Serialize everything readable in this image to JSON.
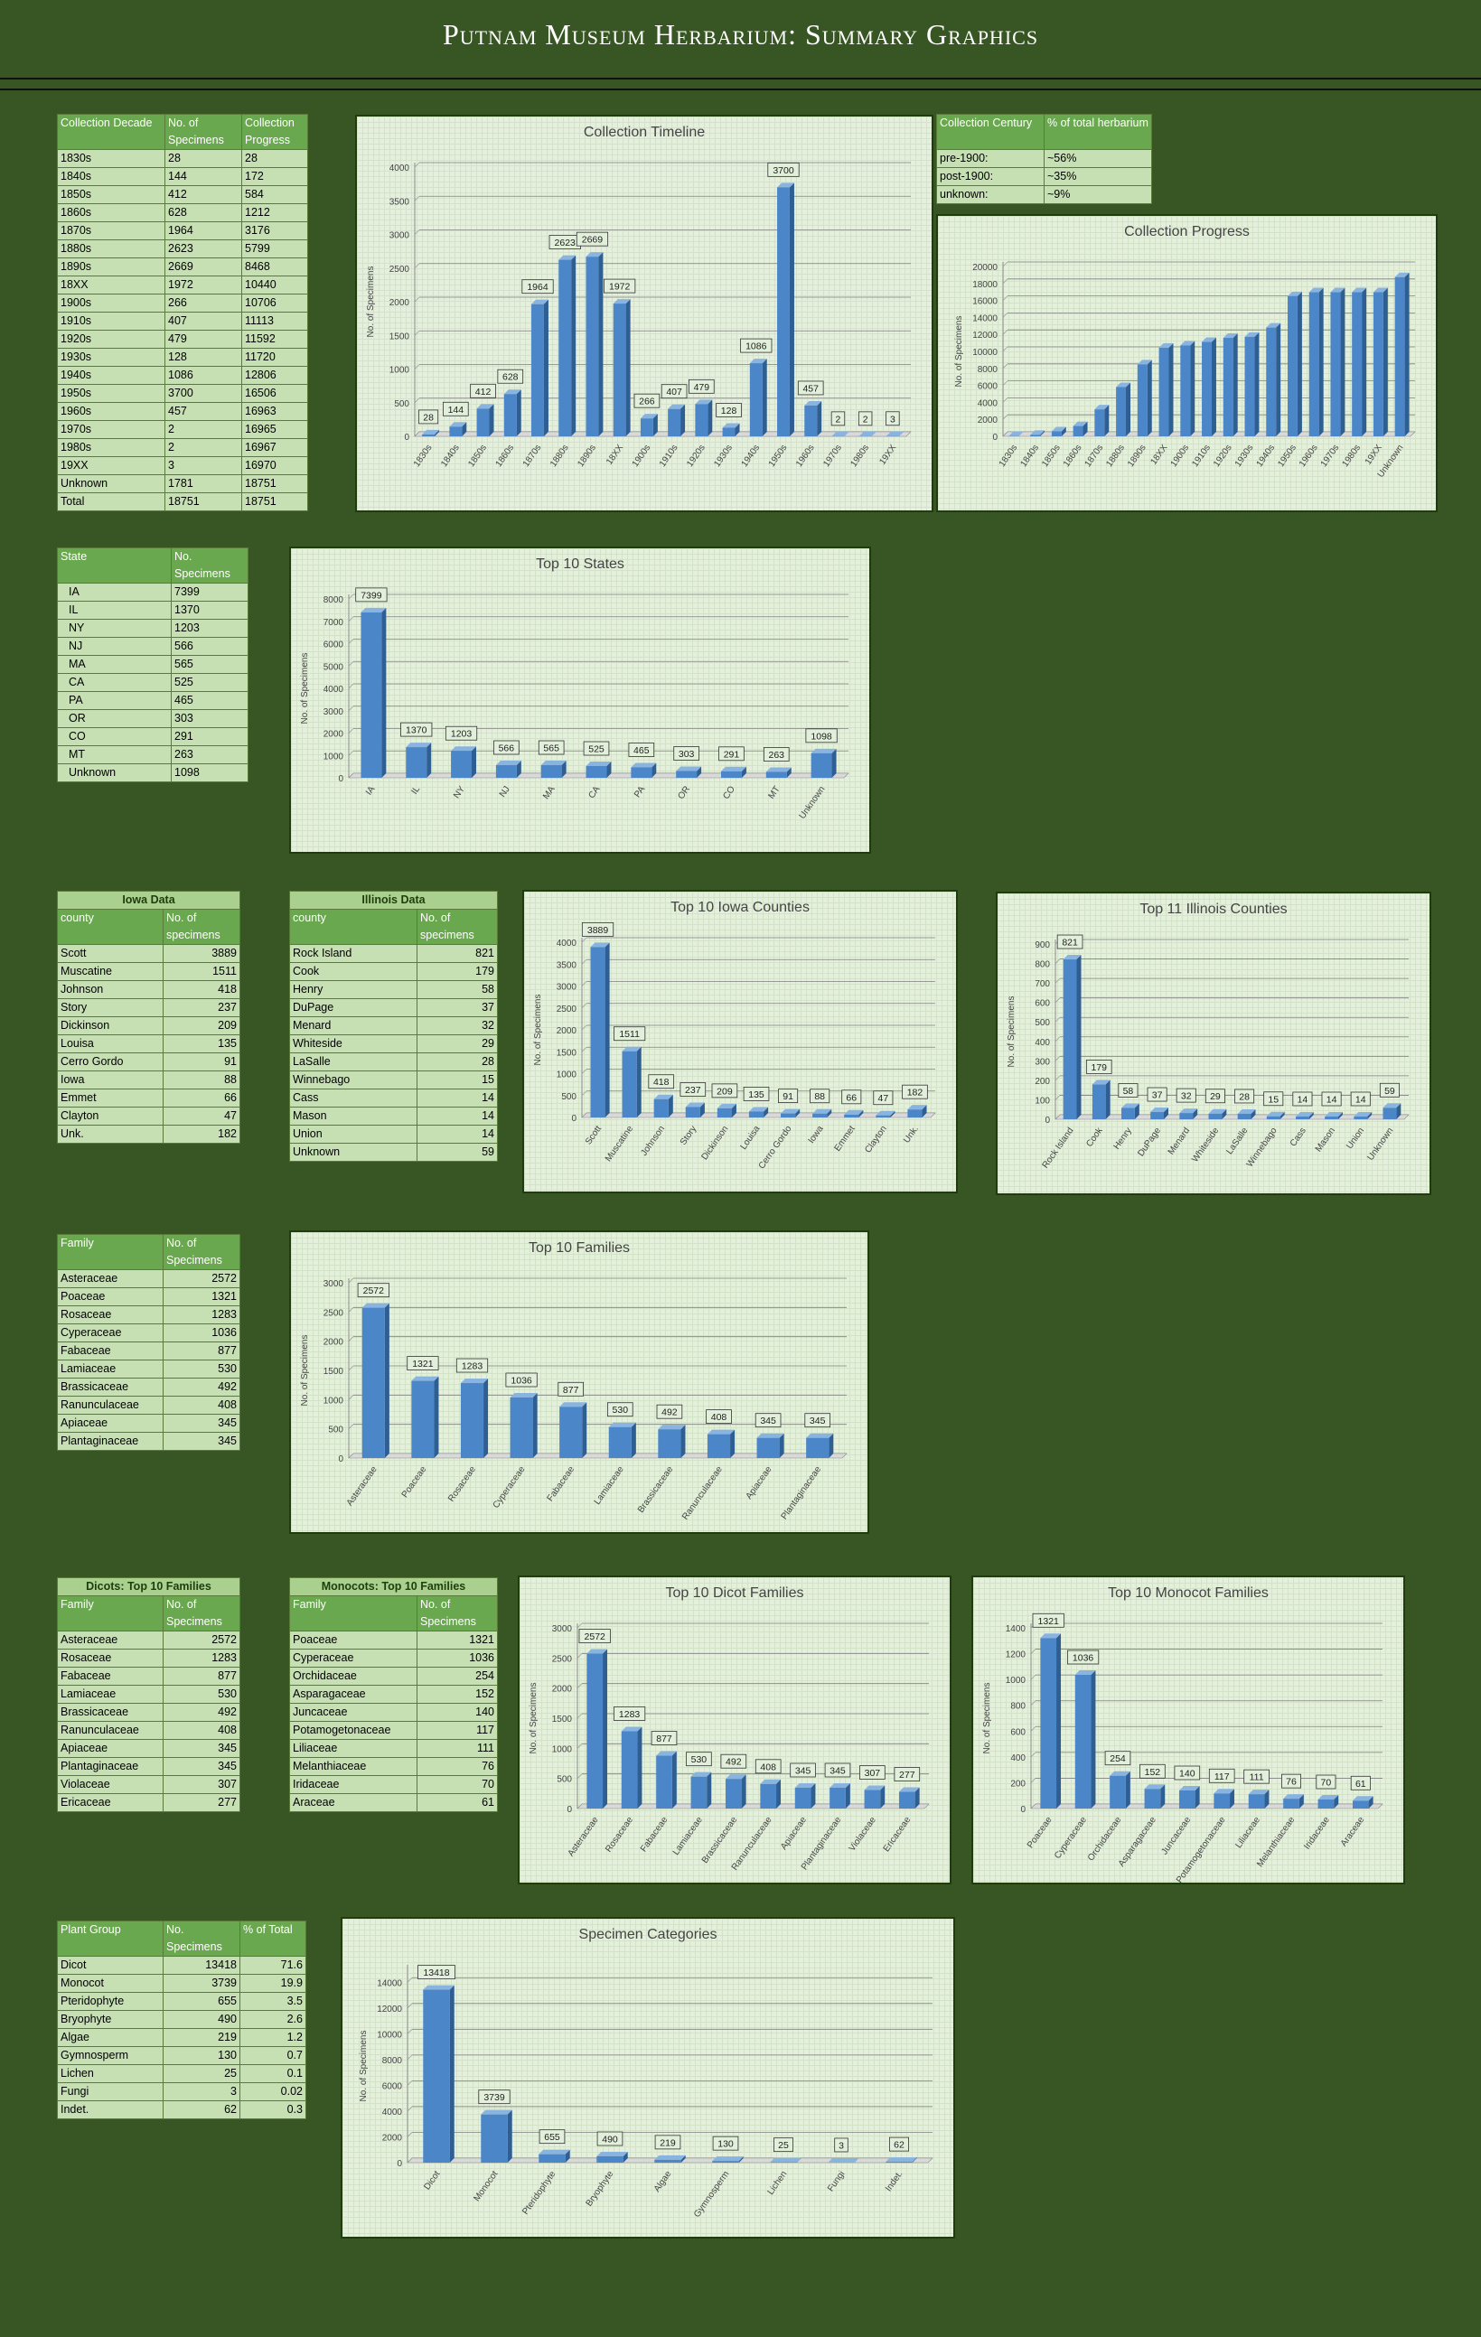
{
  "page_title": "Putnam Museum Herbarium:  Summary Graphics",
  "colors": {
    "background": "#375623",
    "header_cell": "#6aa84f",
    "cell": "#c6e0b4",
    "bar": "#4a86c8",
    "chart_bg": "#e4efdc"
  },
  "tables": {
    "decade": {
      "headers": [
        "Collection Decade",
        "No. of Specimens",
        "Collection Progress"
      ],
      "rows": [
        [
          "1830s",
          "28",
          "28"
        ],
        [
          "1840s",
          "144",
          "172"
        ],
        [
          "1850s",
          "412",
          "584"
        ],
        [
          "1860s",
          "628",
          "1212"
        ],
        [
          "1870s",
          "1964",
          "3176"
        ],
        [
          "1880s",
          "2623",
          "5799"
        ],
        [
          "1890s",
          "2669",
          "8468"
        ],
        [
          "18XX",
          "1972",
          "10440"
        ],
        [
          "1900s",
          "266",
          "10706"
        ],
        [
          "1910s",
          "407",
          "11113"
        ],
        [
          "1920s",
          "479",
          "11592"
        ],
        [
          "1930s",
          "128",
          "11720"
        ],
        [
          "1940s",
          "1086",
          "12806"
        ],
        [
          "1950s",
          "3700",
          "16506"
        ],
        [
          "1960s",
          "457",
          "16963"
        ],
        [
          "1970s",
          "2",
          "16965"
        ],
        [
          "1980s",
          "2",
          "16967"
        ],
        [
          "19XX",
          "3",
          "16970"
        ],
        [
          "Unknown",
          "1781",
          "18751"
        ],
        [
          "Total",
          "18751",
          "18751"
        ]
      ]
    },
    "century": {
      "headers": [
        "Collection Century",
        "% of total herbarium"
      ],
      "rows": [
        [
          "pre-1900:",
          "~56%"
        ],
        [
          "post-1900:",
          "~35%"
        ],
        [
          "unknown:",
          "~9%"
        ]
      ]
    },
    "state": {
      "headers": [
        "State",
        "No. Specimens"
      ],
      "rows": [
        [
          "IA",
          "7399"
        ],
        [
          "IL",
          "1370"
        ],
        [
          "NY",
          "1203"
        ],
        [
          "NJ",
          "566"
        ],
        [
          "MA",
          "565"
        ],
        [
          "CA",
          "525"
        ],
        [
          "PA",
          "465"
        ],
        [
          "OR",
          "303"
        ],
        [
          "CO",
          "291"
        ],
        [
          "MT",
          "263"
        ],
        [
          "Unknown",
          "1098"
        ]
      ]
    },
    "iowa": {
      "title": "Iowa Data",
      "headers": [
        "county",
        "No. of specimens"
      ],
      "rows": [
        [
          "Scott",
          "3889"
        ],
        [
          "Muscatine",
          "1511"
        ],
        [
          "Johnson",
          "418"
        ],
        [
          "Story",
          "237"
        ],
        [
          "Dickinson",
          "209"
        ],
        [
          "Louisa",
          "135"
        ],
        [
          "Cerro Gordo",
          "91"
        ],
        [
          "Iowa",
          "88"
        ],
        [
          "Emmet",
          "66"
        ],
        [
          "Clayton",
          "47"
        ],
        [
          "Unk.",
          "182"
        ]
      ]
    },
    "illinois": {
      "title": "Illinois Data",
      "headers": [
        "county",
        "No. of specimens"
      ],
      "rows": [
        [
          "Rock Island",
          "821"
        ],
        [
          "Cook",
          "179"
        ],
        [
          "Henry",
          "58"
        ],
        [
          "DuPage",
          "37"
        ],
        [
          "Menard",
          "32"
        ],
        [
          "Whiteside",
          "29"
        ],
        [
          "LaSalle",
          "28"
        ],
        [
          "Winnebago",
          "15"
        ],
        [
          "Cass",
          "14"
        ],
        [
          "Mason",
          "14"
        ],
        [
          "Union",
          "14"
        ],
        [
          "Unknown",
          "59"
        ]
      ]
    },
    "family": {
      "headers": [
        "Family",
        "No. of Specimens"
      ],
      "rows": [
        [
          "Asteraceae",
          "2572"
        ],
        [
          "Poaceae",
          "1321"
        ],
        [
          "Rosaceae",
          "1283"
        ],
        [
          "Cyperaceae",
          "1036"
        ],
        [
          "Fabaceae",
          "877"
        ],
        [
          "Lamiaceae",
          "530"
        ],
        [
          "Brassicaceae",
          "492"
        ],
        [
          "Ranunculaceae",
          "408"
        ],
        [
          "Apiaceae",
          "345"
        ],
        [
          "Plantaginaceae",
          "345"
        ]
      ]
    },
    "dicots": {
      "title": "Dicots:  Top 10 Families",
      "headers": [
        "Family",
        "No. of Specimens"
      ],
      "rows": [
        [
          "Asteraceae",
          "2572"
        ],
        [
          "Rosaceae",
          "1283"
        ],
        [
          "Fabaceae",
          "877"
        ],
        [
          "Lamiaceae",
          "530"
        ],
        [
          "Brassicaceae",
          "492"
        ],
        [
          "Ranunculaceae",
          "408"
        ],
        [
          "Apiaceae",
          "345"
        ],
        [
          "Plantaginaceae",
          "345"
        ],
        [
          "Violaceae",
          "307"
        ],
        [
          "Ericaceae",
          "277"
        ]
      ]
    },
    "monocots": {
      "title": "Monocots:  Top 10 Families",
      "headers": [
        "Family",
        "No. of Specimens"
      ],
      "rows": [
        [
          "Poaceae",
          "1321"
        ],
        [
          "Cyperaceae",
          "1036"
        ],
        [
          "Orchidaceae",
          "254"
        ],
        [
          "Asparagaceae",
          "152"
        ],
        [
          "Juncaceae",
          "140"
        ],
        [
          "Potamogetonaceae",
          "117"
        ],
        [
          "Liliaceae",
          "111"
        ],
        [
          "Melanthiaceae",
          "76"
        ],
        [
          "Iridaceae",
          "70"
        ],
        [
          "Araceae",
          "61"
        ]
      ]
    },
    "groups": {
      "headers": [
        "Plant Group",
        "No. Specimens",
        "% of Total"
      ],
      "rows": [
        [
          "Dicot",
          "13418",
          "71.6"
        ],
        [
          "Monocot",
          "3739",
          "19.9"
        ],
        [
          "Pteridophyte",
          "655",
          "3.5"
        ],
        [
          "Bryophyte",
          "490",
          "2.6"
        ],
        [
          "Algae",
          "219",
          "1.2"
        ],
        [
          "Gymnosperm",
          "130",
          "0.7"
        ],
        [
          "Lichen",
          "25",
          "0.1"
        ],
        [
          "Fungi",
          "3",
          "0.02"
        ],
        [
          "Indet.",
          "62",
          "0.3"
        ]
      ]
    }
  },
  "chart_data": [
    {
      "id": "timeline",
      "type": "bar",
      "title": "Collection Timeline",
      "xlabel": "",
      "ylabel": "No. of Specimens",
      "ylim": [
        0,
        4000
      ],
      "yticks": [
        0,
        500,
        1000,
        1500,
        2000,
        2500,
        3000,
        3500,
        4000
      ],
      "data_labels": true,
      "grid": true,
      "categories": [
        "1830s",
        "1840s",
        "1850s",
        "1860s",
        "1870s",
        "1880s",
        "1890s",
        "18XX",
        "1900s",
        "1910s",
        "1920s",
        "1930s",
        "1940s",
        "1950s",
        "1960s",
        "1970s",
        "1980s",
        "19XX"
      ],
      "values": [
        28,
        144,
        412,
        628,
        1964,
        2623,
        2669,
        1972,
        266,
        407,
        479,
        128,
        1086,
        3700,
        457,
        2,
        2,
        3
      ]
    },
    {
      "id": "progress",
      "type": "bar",
      "title": "Collection Progress",
      "xlabel": "",
      "ylabel": "No. of Specimens",
      "ylim": [
        0,
        20000
      ],
      "yticks": [
        0,
        2000,
        4000,
        6000,
        8000,
        10000,
        12000,
        14000,
        16000,
        18000,
        20000
      ],
      "data_labels": false,
      "grid": true,
      "categories": [
        "1830s",
        "1840s",
        "1850s",
        "1860s",
        "1870s",
        "1880s",
        "1890s",
        "18XX",
        "1900s",
        "1910s",
        "1920s",
        "1930s",
        "1940s",
        "1950s",
        "1960s",
        "1970s",
        "1980s",
        "19XX",
        "Unknown"
      ],
      "values": [
        28,
        172,
        584,
        1212,
        3176,
        5799,
        8468,
        10440,
        10706,
        11113,
        11592,
        11720,
        12806,
        16506,
        16963,
        16965,
        16967,
        16970,
        18751
      ]
    },
    {
      "id": "states",
      "type": "bar",
      "title": "Top 10 States",
      "xlabel": "",
      "ylabel": "No. of Specimens",
      "ylim": [
        0,
        8000
      ],
      "yticks": [
        0,
        1000,
        2000,
        3000,
        4000,
        5000,
        6000,
        7000,
        8000
      ],
      "data_labels": true,
      "grid": true,
      "categories": [
        "IA",
        "IL",
        "NY",
        "NJ",
        "MA",
        "CA",
        "PA",
        "OR",
        "CO",
        "MT",
        "Unknown"
      ],
      "values": [
        7399,
        1370,
        1203,
        566,
        565,
        525,
        465,
        303,
        291,
        263,
        1098
      ]
    },
    {
      "id": "iowa",
      "type": "bar",
      "title": "Top 10 Iowa Counties",
      "xlabel": "",
      "ylabel": "No. of Specimens",
      "ylim": [
        0,
        4000
      ],
      "yticks": [
        0,
        500,
        1000,
        1500,
        2000,
        2500,
        3000,
        3500,
        4000
      ],
      "data_labels": true,
      "grid": true,
      "categories": [
        "Scott",
        "Muscatine",
        "Johnson",
        "Story",
        "Dickinson",
        "Louisa",
        "Cerro Gordo",
        "Iowa",
        "Emmet",
        "Clayton",
        "Unk."
      ],
      "values": [
        3889,
        1511,
        418,
        237,
        209,
        135,
        91,
        88,
        66,
        47,
        182
      ]
    },
    {
      "id": "illinois",
      "type": "bar",
      "title": "Top 11 Illinois Counties",
      "xlabel": "",
      "ylabel": "No. of Specimens",
      "ylim": [
        0,
        900
      ],
      "yticks": [
        0,
        100,
        200,
        300,
        400,
        500,
        600,
        700,
        800,
        900
      ],
      "data_labels": true,
      "grid": true,
      "categories": [
        "Rock Island",
        "Cook",
        "Henry",
        "DuPage",
        "Menard",
        "Whiteside",
        "LaSalle",
        "Winnebago",
        "Cass",
        "Mason",
        "Union",
        "Unknown"
      ],
      "values": [
        821,
        179,
        58,
        37,
        32,
        29,
        28,
        15,
        14,
        14,
        14,
        59
      ]
    },
    {
      "id": "families",
      "type": "bar",
      "title": "Top 10 Families",
      "xlabel": "",
      "ylabel": "No. of Specimens",
      "ylim": [
        0,
        3000
      ],
      "yticks": [
        0,
        500,
        1000,
        1500,
        2000,
        2500,
        3000
      ],
      "data_labels": true,
      "grid": true,
      "categories": [
        "Asteraceae",
        "Poaceae",
        "Rosaceae",
        "Cyperaceae",
        "Fabaceae",
        "Lamiaceae",
        "Brassicaceae",
        "Ranunculaceae",
        "Apiaceae",
        "Plantaginaceae"
      ],
      "values": [
        2572,
        1321,
        1283,
        1036,
        877,
        530,
        492,
        408,
        345,
        345
      ]
    },
    {
      "id": "dicots",
      "type": "bar",
      "title": "Top 10 Dicot Families",
      "xlabel": "",
      "ylabel": "No. of Specimens",
      "ylim": [
        0,
        3000
      ],
      "yticks": [
        0,
        500,
        1000,
        1500,
        2000,
        2500,
        3000
      ],
      "data_labels": true,
      "grid": true,
      "categories": [
        "Asteraceae",
        "Rosaceae",
        "Fabaceae",
        "Lamiaceae",
        "Brassicaceae",
        "Ranunculaceae",
        "Apiaceae",
        "Plantaginaceae",
        "Violaceae",
        "Ericaceae"
      ],
      "values": [
        2572,
        1283,
        877,
        530,
        492,
        408,
        345,
        345,
        307,
        277
      ]
    },
    {
      "id": "monocots",
      "type": "bar",
      "title": "Top 10 Monocot Families",
      "xlabel": "",
      "ylabel": "No. of Specimens",
      "ylim": [
        0,
        1400
      ],
      "yticks": [
        0,
        200,
        400,
        600,
        800,
        1000,
        1200,
        1400
      ],
      "data_labels": true,
      "grid": true,
      "categories": [
        "Poaceae",
        "Cyperaceae",
        "Orchidaceae",
        "Asparagaceae",
        "Juncaceae",
        "Potamogetonaceae",
        "Liliaceae",
        "Melanthiaceae",
        "Iridaceae",
        "Araceae"
      ],
      "values": [
        1321,
        1036,
        254,
        152,
        140,
        117,
        111,
        76,
        70,
        61
      ]
    },
    {
      "id": "categories",
      "type": "bar",
      "title": "Specimen Categories",
      "xlabel": "",
      "ylabel": "No. of Specimens",
      "ylim": [
        0,
        15000
      ],
      "yticks": [
        0,
        2000,
        4000,
        6000,
        8000,
        10000,
        12000,
        14000
      ],
      "data_labels": true,
      "grid": true,
      "categories": [
        "Dicot",
        "Monocot",
        "Pteridophyte",
        "Bryophyte",
        "Algae",
        "Gymnosperm",
        "Lichen",
        "Fungi",
        "Indet."
      ],
      "values": [
        13418,
        3739,
        655,
        490,
        219,
        130,
        25,
        3,
        62
      ]
    }
  ]
}
